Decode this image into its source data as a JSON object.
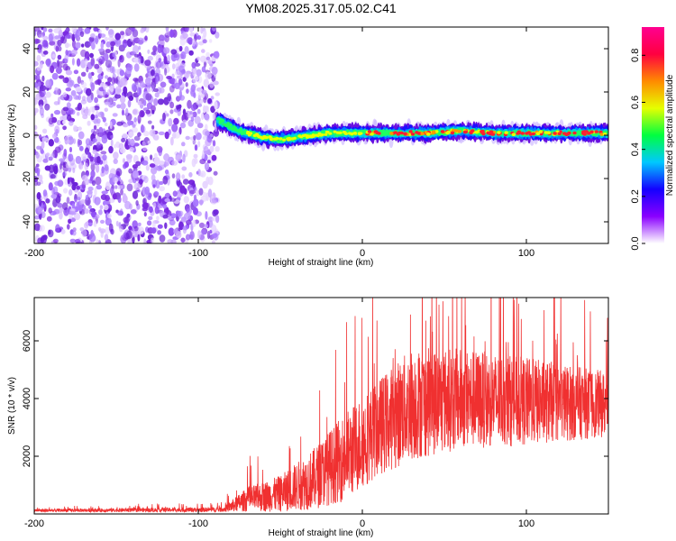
{
  "chart_data": [
    {
      "type": "heatmap",
      "title": "YM08.2025.317.05.02.C41",
      "xlabel": "Height of straight line (km)",
      "ylabel": "Frequency (Hz)",
      "xlim": [
        -200,
        150
      ],
      "ylim": [
        -50,
        50
      ],
      "xticks": [
        -200,
        -100,
        0,
        100
      ],
      "xtick_labels": [
        "-200",
        "-100",
        "0",
        "100"
      ],
      "yticks": [
        -40,
        -20,
        0,
        20,
        40
      ],
      "ytick_labels": [
        "-40",
        "-20",
        "0",
        "20",
        "40"
      ],
      "colorbar": {
        "label": "Normalized spectral amplitude",
        "range": [
          0,
          0.92
        ],
        "ticks": [
          0,
          0.2,
          0.4,
          0.6,
          0.8
        ],
        "tick_labels": [
          "0.0",
          "0.2",
          "0.4",
          "0.6",
          "0.8"
        ],
        "colors": [
          "#ffffff",
          "#8a00ff",
          "#1400ff",
          "#00c8ff",
          "#00ff40",
          "#e6ff00",
          "#ff8a00",
          "#ff0040",
          "#ff0090"
        ]
      },
      "noise_region_x": [
        -200,
        -88
      ],
      "signal_band": {
        "x_start": -88,
        "x_end": 150,
        "center_freq_points": [
          [
            -88,
            7
          ],
          [
            -75,
            2
          ],
          [
            -60,
            -1
          ],
          [
            -50,
            -2
          ],
          [
            -40,
            -1
          ],
          [
            -30,
            0
          ],
          [
            -20,
            1
          ],
          [
            -10,
            1
          ],
          [
            0,
            1
          ],
          [
            20,
            1
          ],
          [
            40,
            1
          ],
          [
            60,
            2
          ],
          [
            80,
            1
          ],
          [
            100,
            1
          ],
          [
            120,
            1
          ],
          [
            150,
            1
          ]
        ],
        "peak_region_x": [
          0,
          150
        ]
      },
      "series_color": "#8a2be2"
    },
    {
      "type": "line",
      "xlabel": "Height of straight line (km)",
      "ylabel": "SNR (10 * v/v)",
      "xlim": [
        -200,
        150
      ],
      "ylim": [
        0,
        7500
      ],
      "xticks": [
        -200,
        -100,
        0,
        100
      ],
      "xtick_labels": [
        "-200",
        "-100",
        "0",
        "100"
      ],
      "yticks": [
        2000,
        4000,
        6000
      ],
      "ytick_labels": [
        "2000",
        "4000",
        "6000"
      ],
      "color": "#f03030",
      "envelope": [
        {
          "x": -200,
          "base": 120,
          "spread": 80
        },
        {
          "x": -85,
          "base": 150,
          "spread": 120
        },
        {
          "x": -70,
          "base": 500,
          "spread": 600
        },
        {
          "x": -50,
          "base": 700,
          "spread": 900
        },
        {
          "x": -30,
          "base": 1200,
          "spread": 1500
        },
        {
          "x": -10,
          "base": 2000,
          "spread": 2200
        },
        {
          "x": 10,
          "base": 3000,
          "spread": 2400
        },
        {
          "x": 30,
          "base": 3800,
          "spread": 2800
        },
        {
          "x": 60,
          "base": 4000,
          "spread": 2500
        },
        {
          "x": 100,
          "base": 3900,
          "spread": 2200
        },
        {
          "x": 150,
          "base": 3800,
          "spread": 1600
        }
      ]
    }
  ]
}
